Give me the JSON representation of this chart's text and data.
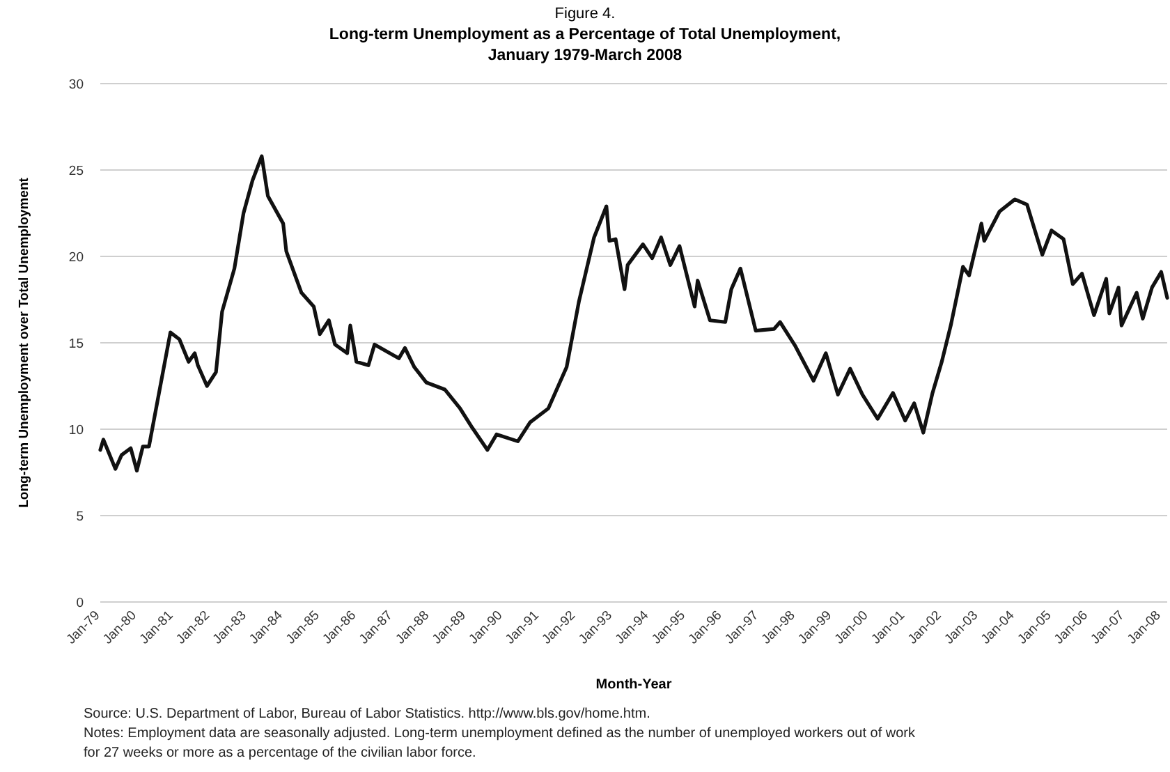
{
  "chart_data": {
    "type": "line",
    "subtitle": "Figure 4.",
    "title": "Long-term Unemployment as a Percentage of Total Unemployment,\nJanuary 1979-March 2008",
    "xlabel": "Month-Year",
    "ylabel": "Long-term Unemployment over Total Unemployment",
    "annotations": [
      "Source: U.S. Department of Labor, Bureau of Labor Statistics. http://www.bls.gov/home.htm.",
      "Notes: Employment data are seasonally adjusted. Long-term unemployment defined as the number of unemployed workers out of work for 27 weeks or more as a percentage of the civilian labor force."
    ],
    "x": [
      "1979-01",
      "1979-02",
      "1979-06",
      "1979-08",
      "1979-11",
      "1980-01",
      "1980-03",
      "1980-05",
      "1980-12",
      "1981-03",
      "1981-06",
      "1981-08",
      "1981-09",
      "1981-12",
      "1982-03",
      "1982-05",
      "1982-09",
      "1982-12",
      "1983-03",
      "1983-06",
      "1983-08",
      "1984-01",
      "1984-02",
      "1984-07",
      "1984-11",
      "1985-01",
      "1985-04",
      "1985-06",
      "1985-10",
      "1985-11",
      "1986-01",
      "1986-05",
      "1986-07",
      "1987-03",
      "1987-05",
      "1987-08",
      "1987-12",
      "1988-06",
      "1988-11",
      "1989-03",
      "1989-08",
      "1989-11",
      "1990-06",
      "1990-10",
      "1991-04",
      "1991-10",
      "1992-02",
      "1992-07",
      "1992-11",
      "1992-12",
      "1993-02",
      "1993-05",
      "1993-06",
      "1993-11",
      "1994-02",
      "1994-05",
      "1994-08",
      "1994-11",
      "1995-04",
      "1995-05",
      "1995-09",
      "1996-02",
      "1996-04",
      "1996-07",
      "1996-12",
      "1997-06",
      "1997-08",
      "1998-01",
      "1998-07",
      "1998-11",
      "1999-03",
      "1999-07",
      "1999-11",
      "2000-04",
      "2000-09",
      "2001-01",
      "2001-04",
      "2001-07",
      "2001-10",
      "2002-01",
      "2002-04",
      "2002-08",
      "2002-10",
      "2003-02",
      "2003-03",
      "2003-08",
      "2004-01",
      "2004-05",
      "2004-10",
      "2005-01",
      "2005-05",
      "2005-08",
      "2005-11",
      "2006-03",
      "2006-07",
      "2006-08",
      "2006-11",
      "2006-12",
      "2007-05",
      "2007-07",
      "2007-10",
      "2008-01",
      "2008-03"
    ],
    "series": [
      {
        "color": "#111111",
        "values": [
          8.8,
          9.4,
          7.7,
          8.5,
          8.9,
          7.6,
          9.0,
          9.0,
          15.6,
          15.2,
          13.9,
          14.4,
          13.7,
          12.5,
          13.3,
          16.8,
          19.3,
          22.5,
          24.4,
          25.8,
          23.5,
          21.9,
          20.3,
          17.9,
          17.1,
          15.5,
          16.3,
          14.9,
          14.4,
          16.0,
          13.9,
          13.7,
          14.9,
          14.1,
          14.7,
          13.6,
          12.7,
          12.3,
          11.2,
          10.1,
          8.8,
          9.7,
          9.3,
          10.4,
          11.2,
          13.6,
          17.4,
          21.1,
          22.9,
          20.9,
          21.0,
          18.1,
          19.5,
          20.7,
          19.9,
          21.1,
          19.5,
          20.6,
          17.1,
          18.6,
          16.3,
          16.2,
          18.1,
          19.3,
          15.7,
          15.8,
          16.2,
          14.8,
          12.8,
          14.4,
          12.0,
          13.5,
          12.0,
          10.6,
          12.1,
          10.5,
          11.5,
          9.8,
          12.1,
          13.9,
          16.0,
          19.4,
          18.9,
          21.9,
          20.9,
          22.6,
          23.3,
          23.0,
          20.1,
          21.5,
          21.0,
          18.4,
          19.0,
          16.6,
          18.7,
          16.7,
          18.2,
          16.0,
          17.9,
          16.4,
          18.2,
          19.1,
          17.6
        ]
      }
    ],
    "xlim": [
      "1979-01",
      "2008-03"
    ],
    "xticks": [
      {
        "value": "1979-01",
        "label": "Jan-79"
      },
      {
        "value": "1980-01",
        "label": "Jan-80"
      },
      {
        "value": "1981-01",
        "label": "Jan-81"
      },
      {
        "value": "1982-01",
        "label": "Jan-82"
      },
      {
        "value": "1983-01",
        "label": "Jan-83"
      },
      {
        "value": "1984-01",
        "label": "Jan-84"
      },
      {
        "value": "1985-01",
        "label": "Jan-85"
      },
      {
        "value": "1986-01",
        "label": "Jan-86"
      },
      {
        "value": "1987-01",
        "label": "Jan-87"
      },
      {
        "value": "1988-01",
        "label": "Jan-88"
      },
      {
        "value": "1989-01",
        "label": "Jan-89"
      },
      {
        "value": "1990-01",
        "label": "Jan-90"
      },
      {
        "value": "1991-01",
        "label": "Jan-91"
      },
      {
        "value": "1992-01",
        "label": "Jan-92"
      },
      {
        "value": "1993-01",
        "label": "Jan-93"
      },
      {
        "value": "1994-01",
        "label": "Jan-94"
      },
      {
        "value": "1995-01",
        "label": "Jan-95"
      },
      {
        "value": "1996-01",
        "label": "Jan-96"
      },
      {
        "value": "1997-01",
        "label": "Jan-97"
      },
      {
        "value": "1998-01",
        "label": "Jan-98"
      },
      {
        "value": "1999-01",
        "label": "Jan-99"
      },
      {
        "value": "2000-01",
        "label": "Jan-00"
      },
      {
        "value": "2001-01",
        "label": "Jan-01"
      },
      {
        "value": "2002-01",
        "label": "Jan-02"
      },
      {
        "value": "2003-01",
        "label": "Jan-03"
      },
      {
        "value": "2004-01",
        "label": "Jan-04"
      },
      {
        "value": "2005-01",
        "label": "Jan-05"
      },
      {
        "value": "2006-01",
        "label": "Jan-06"
      },
      {
        "value": "2007-01",
        "label": "Jan-07"
      },
      {
        "value": "2008-01",
        "label": "Jan-08"
      }
    ],
    "ylim": [
      0,
      30
    ],
    "yticks": [
      0,
      5,
      10,
      15,
      20,
      25,
      30
    ],
    "grid": "y",
    "marker": "none",
    "line_style": "solid"
  }
}
